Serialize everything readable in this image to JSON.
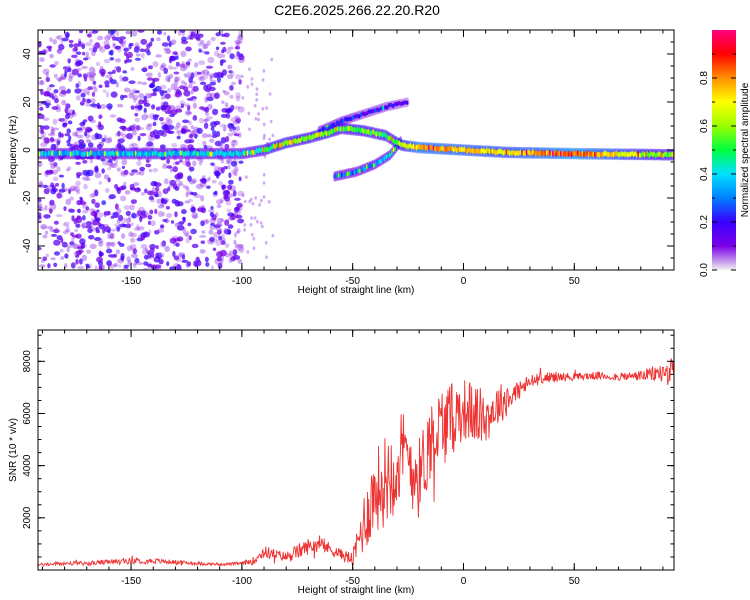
{
  "title": "C2E6.2025.266.22.20.R20",
  "chart_data": [
    {
      "type": "heatmap",
      "xlabel": "Height of straight line (km)",
      "ylabel": "Frequency (Hz)",
      "xlim": [
        -192,
        95
      ],
      "ylim": [
        -50,
        50
      ],
      "xticks": [
        -150,
        -100,
        -50,
        0,
        50
      ],
      "yticks": [
        -40,
        -20,
        0,
        20,
        40
      ],
      "colorbar": {
        "label": "Normalized spectral amplitude",
        "range": [
          0,
          1
        ],
        "ticks": [
          "0.0",
          "0.2",
          "0.4",
          "0.6",
          "0.8"
        ],
        "colors": [
          "#f0f0f0",
          "#7a00e6",
          "#3a00ff",
          "#0080ff",
          "#00e0ff",
          "#00ff40",
          "#9aff00",
          "#ffff00",
          "#ff9000",
          "#ff0000",
          "#ff0080"
        ]
      },
      "features": [
        {
          "name": "main-band",
          "x": [
            -192,
            -100,
            -90,
            -80,
            -70,
            -62,
            -55,
            -45,
            -35,
            -28,
            -20,
            0,
            20,
            50,
            95
          ],
          "y": [
            -1.5,
            -1.5,
            0,
            3,
            5,
            7,
            9,
            8,
            6,
            2,
            1,
            0,
            -1,
            -1.5,
            -2
          ],
          "amplitude": [
            0.35,
            0.4,
            0.5,
            0.6,
            0.55,
            0.6,
            0.5,
            0.55,
            0.5,
            0.6,
            0.8,
            0.75,
            0.7,
            0.85,
            0.5
          ]
        },
        {
          "name": "upper-branch",
          "x": [
            -65,
            -55,
            -45,
            -35,
            -25
          ],
          "y": [
            8,
            12,
            15,
            18,
            20
          ],
          "amplitude": [
            0.25,
            0.25,
            0.2,
            0.2,
            0.15
          ]
        },
        {
          "name": "lower-branch",
          "x": [
            -58,
            -48,
            -40,
            -33,
            -28
          ],
          "y": [
            -11,
            -9,
            -6,
            -2,
            4
          ],
          "amplitude": [
            0.3,
            0.3,
            0.35,
            0.4,
            0.5
          ]
        },
        {
          "name": "scatter-noise",
          "x": [
            -192,
            -100
          ],
          "y": [
            -50,
            50
          ],
          "amplitude": [
            0.2,
            0.3
          ]
        }
      ]
    },
    {
      "type": "line",
      "xlabel": "Height of straight line (km)",
      "ylabel": "SNR (10 * v/v)",
      "xlim": [
        -192,
        95
      ],
      "ylim": [
        0,
        9200
      ],
      "xticks": [
        -150,
        -100,
        -50,
        0,
        50
      ],
      "yticks": [
        2000,
        4000,
        6000,
        8000
      ],
      "series": [
        {
          "name": "SNR",
          "color": "#ee3333",
          "x": [
            -192,
            -180,
            -170,
            -160,
            -150,
            -140,
            -130,
            -120,
            -110,
            -100,
            -95,
            -90,
            -85,
            -80,
            -75,
            -70,
            -65,
            -60,
            -55,
            -50,
            -45,
            -40,
            -35,
            -30,
            -25,
            -20,
            -15,
            -10,
            -5,
            0,
            5,
            10,
            15,
            20,
            25,
            30,
            35,
            40,
            50,
            60,
            70,
            80,
            90,
            95
          ],
          "y": [
            200,
            250,
            250,
            300,
            350,
            350,
            300,
            250,
            220,
            250,
            350,
            700,
            600,
            500,
            700,
            900,
            1000,
            800,
            600,
            400,
            1800,
            3000,
            3500,
            4200,
            4300,
            3500,
            5000,
            5500,
            5800,
            6200,
            6000,
            5800,
            6300,
            6600,
            6900,
            7200,
            7350,
            7400,
            7400,
            7450,
            7400,
            7450,
            7550,
            7600
          ],
          "amplitude_noise": [
            50,
            80,
            80,
            100,
            120,
            100,
            80,
            60,
            50,
            60,
            150,
            250,
            200,
            200,
            300,
            300,
            300,
            250,
            200,
            300,
            1200,
            1600,
            1800,
            2000,
            1800,
            1600,
            1600,
            1600,
            1400,
            1200,
            1200,
            1000,
            800,
            700,
            400,
            300,
            200,
            200,
            150,
            150,
            150,
            200,
            400,
            600
          ]
        }
      ]
    }
  ]
}
